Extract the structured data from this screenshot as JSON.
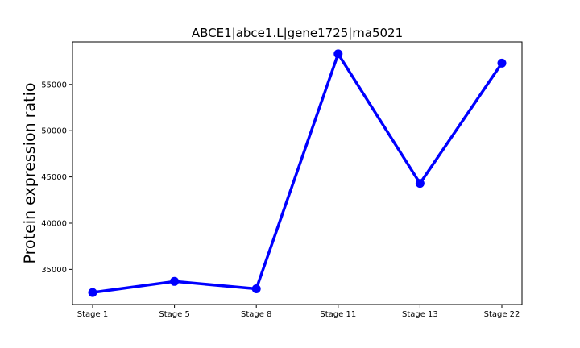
{
  "chart_data": {
    "type": "line",
    "title": "ABCE1|abce1.L|gene1725|rna5021",
    "xlabel": "",
    "ylabel": "Protein expression ratio",
    "categories": [
      "Stage 1",
      "Stage 5",
      "Stage 8",
      "Stage 11",
      "Stage 13",
      "Stage 22"
    ],
    "series": [
      {
        "values": [
          32500,
          33700,
          32900,
          58300,
          44300,
          57300
        ]
      }
    ],
    "y_ticks": [
      35000,
      40000,
      45000,
      50000,
      55000
    ],
    "y_tick_labels": [
      "35000",
      "40000",
      "45000",
      "50000",
      "55000"
    ],
    "ylim": [
      31200,
      59600
    ],
    "grid": false,
    "line_color": "#0000ff",
    "marker_color": "#0000ff"
  }
}
